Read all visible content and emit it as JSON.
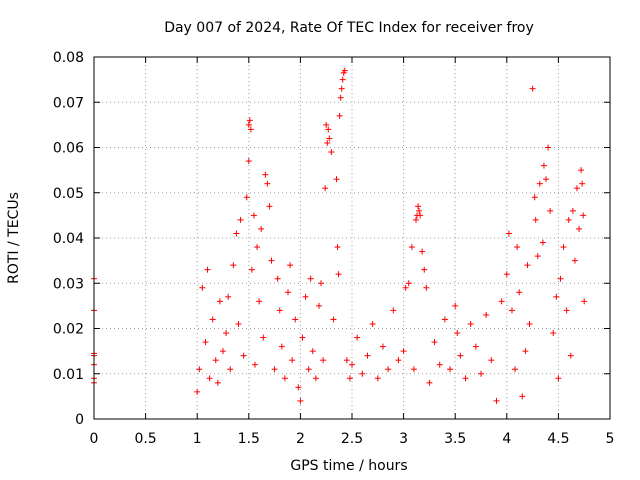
{
  "chart_data": {
    "type": "scatter",
    "title": "Day 007 of 2024, Rate Of TEC Index for receiver froy",
    "xlabel": "GPS time / hours",
    "ylabel": "ROTI / TECUs",
    "xlim": [
      0,
      5
    ],
    "ylim": [
      0,
      0.08
    ],
    "x_ticks": [
      0,
      0.5,
      1,
      1.5,
      2,
      2.5,
      3,
      3.5,
      4,
      4.5,
      5
    ],
    "x_tick_labels": [
      "0",
      "0.5",
      "1",
      "1.5",
      "2",
      "2.5",
      "3",
      "3.5",
      "4",
      "4.5",
      "5"
    ],
    "y_ticks": [
      0,
      0.01,
      0.02,
      0.03,
      0.04,
      0.05,
      0.06,
      0.07,
      0.08
    ],
    "y_tick_labels": [
      "0",
      "0.01",
      "0.02",
      "0.03",
      "0.04",
      "0.05",
      "0.06",
      "0.07",
      "0.08"
    ],
    "grid": true,
    "marker": "+",
    "color": "#ff0000",
    "series": [
      {
        "name": "ROTI",
        "x": [
          0.0,
          0.0,
          0.0,
          0.0,
          0.0,
          0.0,
          0.0,
          1.0,
          1.02,
          1.05,
          1.08,
          1.1,
          1.12,
          1.15,
          1.18,
          1.2,
          1.22,
          1.25,
          1.28,
          1.3,
          1.32,
          1.35,
          1.38,
          1.4,
          1.42,
          1.45,
          1.48,
          1.5,
          1.5,
          1.51,
          1.52,
          1.53,
          1.55,
          1.56,
          1.58,
          1.6,
          1.62,
          1.64,
          1.66,
          1.68,
          1.7,
          1.72,
          1.75,
          1.78,
          1.8,
          1.82,
          1.85,
          1.88,
          1.9,
          1.92,
          1.95,
          1.98,
          2.0,
          2.02,
          2.05,
          2.08,
          2.1,
          2.12,
          2.15,
          2.18,
          2.2,
          2.22,
          2.24,
          2.25,
          2.26,
          2.27,
          2.28,
          2.3,
          2.32,
          2.35,
          2.36,
          2.37,
          2.38,
          2.39,
          2.4,
          2.41,
          2.42,
          2.43,
          2.45,
          2.48,
          2.5,
          2.55,
          2.6,
          2.65,
          2.7,
          2.75,
          2.8,
          2.85,
          2.9,
          2.95,
          3.0,
          3.02,
          3.05,
          3.08,
          3.1,
          3.12,
          3.13,
          3.14,
          3.15,
          3.16,
          3.18,
          3.2,
          3.22,
          3.25,
          3.3,
          3.35,
          3.4,
          3.45,
          3.5,
          3.52,
          3.55,
          3.6,
          3.65,
          3.7,
          3.75,
          3.8,
          3.85,
          3.9,
          3.95,
          4.0,
          4.02,
          4.05,
          4.08,
          4.1,
          4.12,
          4.15,
          4.18,
          4.2,
          4.22,
          4.25,
          4.27,
          4.28,
          4.3,
          4.32,
          4.35,
          4.36,
          4.38,
          4.4,
          4.42,
          4.45,
          4.48,
          4.5,
          4.52,
          4.55,
          4.58,
          4.6,
          4.62,
          4.64,
          4.66,
          4.68,
          4.7,
          4.72,
          4.73,
          4.74,
          4.75
        ],
        "y": [
          0.008,
          0.009,
          0.012,
          0.014,
          0.0145,
          0.024,
          0.031,
          0.006,
          0.011,
          0.029,
          0.017,
          0.033,
          0.009,
          0.022,
          0.013,
          0.008,
          0.026,
          0.015,
          0.019,
          0.027,
          0.011,
          0.034,
          0.041,
          0.021,
          0.044,
          0.014,
          0.049,
          0.057,
          0.065,
          0.066,
          0.064,
          0.033,
          0.045,
          0.012,
          0.038,
          0.026,
          0.042,
          0.018,
          0.054,
          0.052,
          0.047,
          0.035,
          0.011,
          0.031,
          0.024,
          0.016,
          0.009,
          0.028,
          0.034,
          0.013,
          0.022,
          0.007,
          0.004,
          0.018,
          0.027,
          0.011,
          0.031,
          0.015,
          0.009,
          0.025,
          0.03,
          0.013,
          0.051,
          0.065,
          0.061,
          0.064,
          0.062,
          0.059,
          0.022,
          0.053,
          0.038,
          0.032,
          0.067,
          0.071,
          0.073,
          0.075,
          0.0765,
          0.077,
          0.013,
          0.009,
          0.012,
          0.018,
          0.01,
          0.014,
          0.021,
          0.009,
          0.016,
          0.011,
          0.024,
          0.013,
          0.015,
          0.029,
          0.03,
          0.038,
          0.011,
          0.044,
          0.045,
          0.047,
          0.046,
          0.045,
          0.037,
          0.033,
          0.029,
          0.008,
          0.017,
          0.012,
          0.022,
          0.011,
          0.025,
          0.019,
          0.014,
          0.009,
          0.021,
          0.016,
          0.01,
          0.023,
          0.013,
          0.004,
          0.026,
          0.032,
          0.041,
          0.024,
          0.011,
          0.038,
          0.028,
          0.005,
          0.015,
          0.034,
          0.021,
          0.073,
          0.049,
          0.044,
          0.036,
          0.052,
          0.039,
          0.056,
          0.053,
          0.06,
          0.046,
          0.019,
          0.027,
          0.009,
          0.031,
          0.038,
          0.024,
          0.044,
          0.014,
          0.046,
          0.035,
          0.051,
          0.042,
          0.055,
          0.052,
          0.045,
          0.026
        ]
      }
    ]
  }
}
